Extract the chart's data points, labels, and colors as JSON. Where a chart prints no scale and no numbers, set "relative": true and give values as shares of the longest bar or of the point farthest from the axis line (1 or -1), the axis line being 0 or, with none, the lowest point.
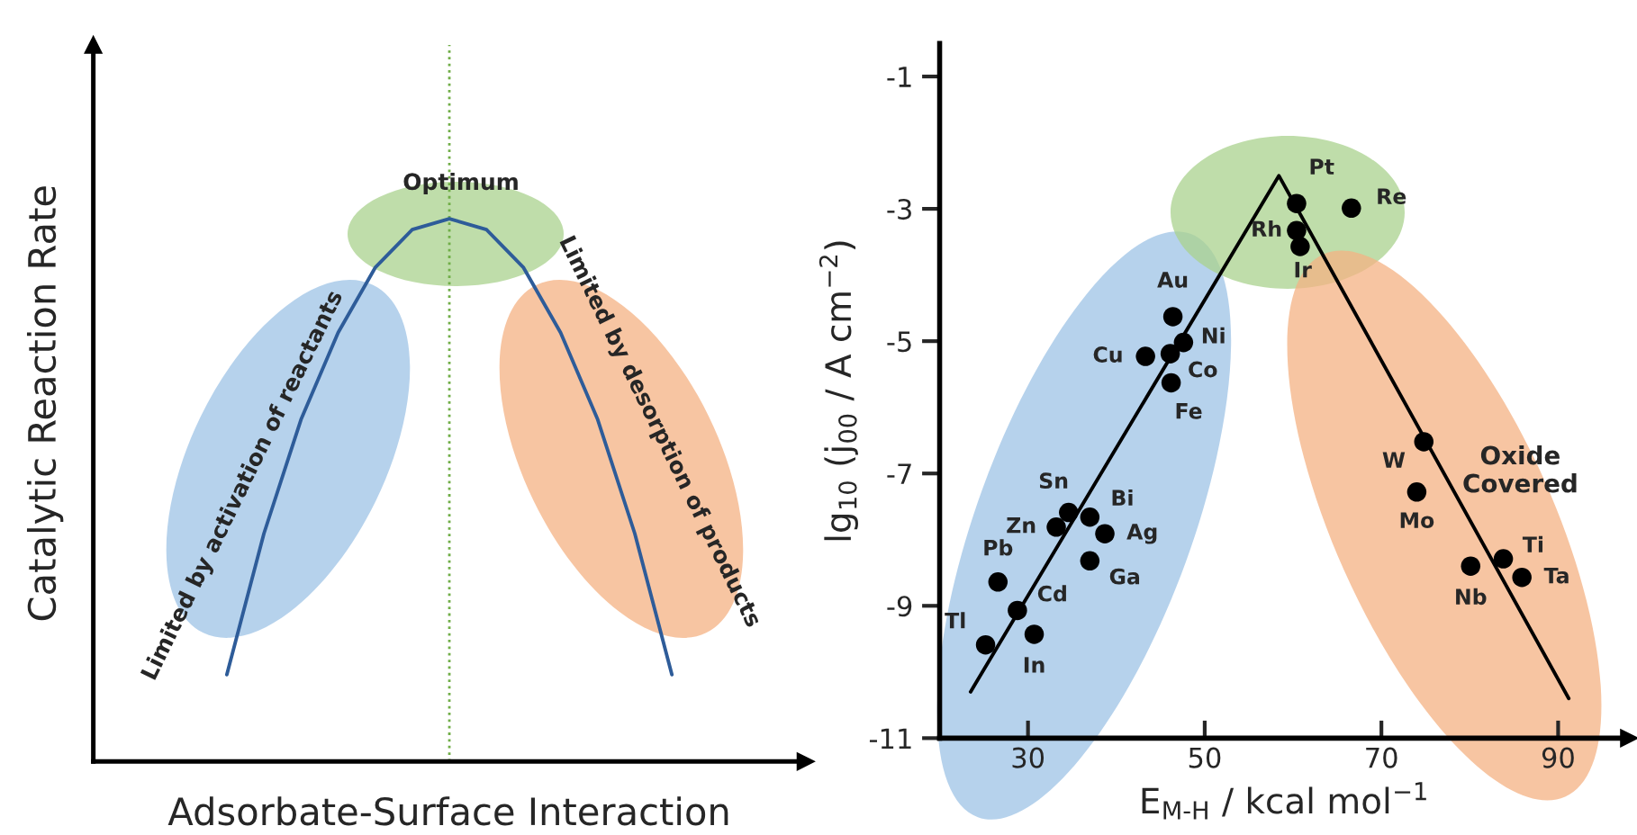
{
  "chart_data": [
    {
      "type": "line",
      "relative": true,
      "xlabel": "Adsorbate-Surface Interaction",
      "ylabel": "Catalytic Reaction Rate",
      "tick_labels": false,
      "grid": false,
      "categories": [
        null,
        null,
        null,
        null,
        null,
        null,
        null,
        null,
        null,
        null,
        null,
        null,
        null
      ],
      "series": [
        {
          "color": "#2e5c99",
          "values": [
            0.16,
            0.42,
            0.63,
            0.79,
            0.91,
            0.98,
            1,
            0.98,
            0.91,
            0.79,
            0.63,
            0.42,
            0.16
          ]
        }
      ],
      "annotations": [
        "Optimum",
        "Limited by activation of reactants",
        "Limited by desorption of products"
      ]
    },
    {
      "type": "scatter",
      "xlabel": "E$_{M‐H}$ / kcal mol$^{−1}$",
      "ylabel": "lg$_{10}$ (j$_{00}$ / A cm$^{−2}$)",
      "grid": false,
      "xlim": [
        20,
        98
      ],
      "ylim": [
        -11,
        -0.5
      ],
      "xticks": [
        30,
        50,
        70,
        90
      ],
      "yticks": [
        -11,
        -9,
        -7,
        -5,
        -3,
        -1
      ],
      "series": [
        {
          "type": "scatter",
          "color": "#000000",
          "marker": "circle",
          "x": [
            25.2,
            26.6,
            28.8,
            30.7,
            33.2,
            34.6,
            37.0,
            38.7,
            37.0,
            46.4,
            47.6,
            46.1,
            43.3,
            46.2,
            60.4,
            66.6,
            60.4,
            60.8,
            74.8,
            74.0,
            80.1,
            83.8,
            85.9
          ],
          "values": [
            -9.59,
            -8.64,
            -9.07,
            -9.43,
            -7.81,
            -7.59,
            -7.66,
            -7.91,
            -8.32,
            -4.63,
            -5.02,
            -5.19,
            -5.23,
            -5.63,
            -2.92,
            -2.99,
            -3.33,
            -3.57,
            -6.52,
            -7.28,
            -8.4,
            -8.29,
            -8.57
          ]
        },
        {
          "type": "line",
          "color": "#000000",
          "marker": "none",
          "x": [
            23.5,
            58.4,
            91.2
          ],
          "values": [
            -10.3,
            -2.5,
            -10.4
          ]
        }
      ],
      "annotations": [
        {
          "text": "Tl",
          "x": 25.2,
          "y": -9.59
        },
        {
          "text": "Pb",
          "x": 26.6,
          "y": -8.64
        },
        {
          "text": "Cd",
          "x": 28.8,
          "y": -9.07
        },
        {
          "text": "In",
          "x": 30.7,
          "y": -9.43
        },
        {
          "text": "Zn",
          "x": 33.2,
          "y": -7.81
        },
        {
          "text": "Sn",
          "x": 34.6,
          "y": -7.59
        },
        {
          "text": "Bi",
          "x": 37.0,
          "y": -7.66
        },
        {
          "text": "Ag",
          "x": 38.7,
          "y": -7.91
        },
        {
          "text": "Ga",
          "x": 37.0,
          "y": -8.32
        },
        {
          "text": "Au",
          "x": 46.4,
          "y": -4.63
        },
        {
          "text": "Ni",
          "x": 47.6,
          "y": -5.02
        },
        {
          "text": "Co",
          "x": 46.1,
          "y": -5.19
        },
        {
          "text": "Cu",
          "x": 43.3,
          "y": -5.23
        },
        {
          "text": "Fe",
          "x": 46.2,
          "y": -5.63
        },
        {
          "text": "Pt",
          "x": 60.4,
          "y": -2.92
        },
        {
          "text": "Re",
          "x": 66.6,
          "y": -2.99
        },
        {
          "text": "Rh",
          "x": 60.4,
          "y": -3.33
        },
        {
          "text": "Ir",
          "x": 60.8,
          "y": -3.57
        },
        {
          "text": "W",
          "x": 74.8,
          "y": -6.52
        },
        {
          "text": "Mo",
          "x": 74.0,
          "y": -7.28
        },
        {
          "text": "Nb",
          "x": 80.1,
          "y": -8.4
        },
        {
          "text": "Ti",
          "x": 83.8,
          "y": -8.29
        },
        {
          "text": "Ta",
          "x": 85.9,
          "y": -8.57
        },
        "Oxide Covered"
      ]
    }
  ]
}
